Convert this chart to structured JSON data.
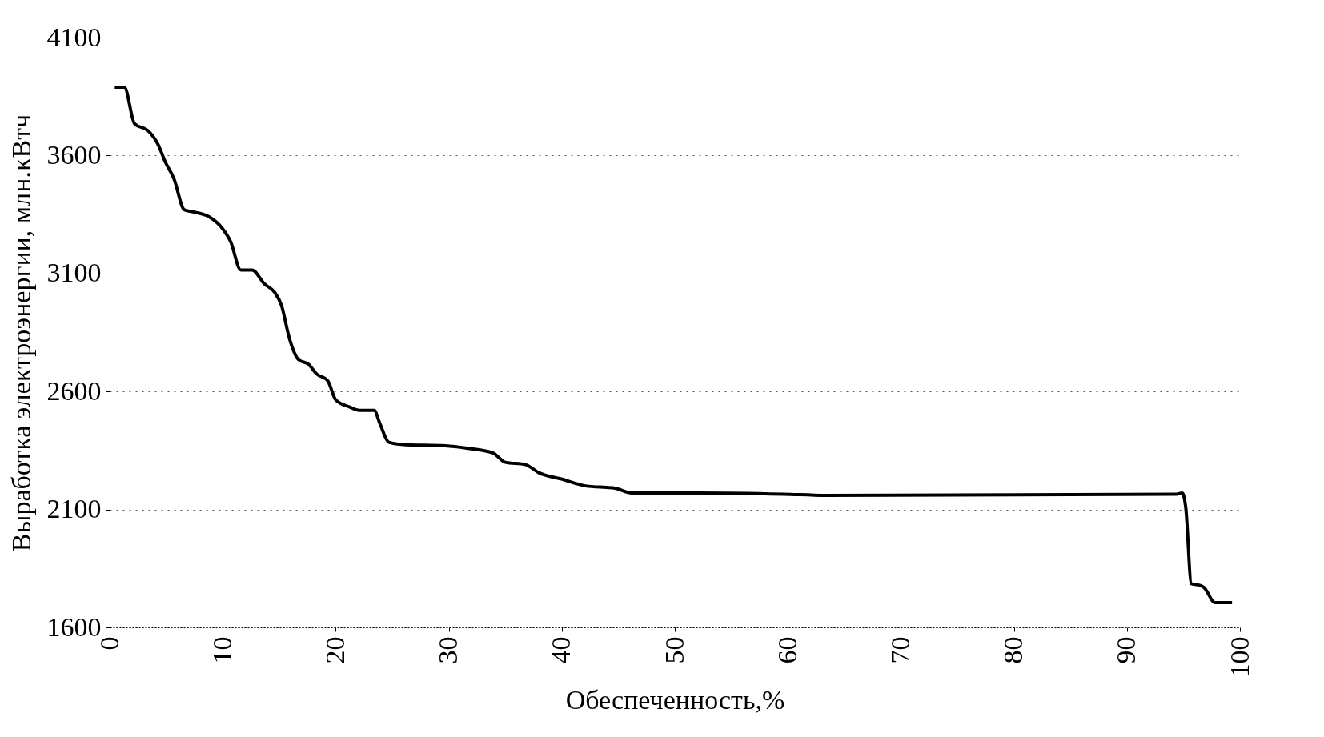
{
  "chart_data": {
    "type": "line",
    "xlabel": "Обеспеченность,%",
    "ylabel": "Выработка электроэнергии, млн.кВтч",
    "x": [
      0.45,
      1.3,
      2.2,
      3.4,
      4.3,
      4.9,
      5.7,
      6.6,
      7.5,
      8.8,
      9.9,
      10.7,
      11.6,
      12.6,
      13.7,
      14.6,
      15.2,
      15.9,
      16.7,
      17.6,
      18.3,
      19.3,
      20.0,
      21.2,
      22.1,
      23.4,
      23.9,
      24.7,
      26.0,
      29.7,
      31.6,
      33.9,
      35.0,
      36.8,
      38.0,
      39.9,
      42.1,
      44.7,
      46.2,
      52.2,
      59.6,
      63.4,
      94.4,
      94.9,
      95.2,
      95.7,
      96.3,
      96.8,
      97.8,
      99.3
    ],
    "series": [
      {
        "color": "#000000",
        "values": [
          3890,
          3890,
          3735,
          3705,
          3645,
          3575,
          3500,
          3370,
          3360,
          3340,
          3295,
          3235,
          3115,
          3115,
          3055,
          3020,
          2965,
          2825,
          2735,
          2715,
          2675,
          2645,
          2565,
          2535,
          2520,
          2520,
          2465,
          2385,
          2375,
          2370,
          2360,
          2340,
          2300,
          2290,
          2255,
          2230,
          2200,
          2190,
          2170,
          2170,
          2165,
          2160,
          2165,
          2170,
          2110,
          1785,
          1780,
          1770,
          1705,
          1705
        ]
      }
    ],
    "xlim": [
      0,
      100
    ],
    "xticks": [
      0,
      10,
      20,
      30,
      40,
      50,
      60,
      70,
      80,
      90,
      100
    ],
    "ylim": [
      1600,
      4100
    ],
    "yticks": [
      1600,
      2100,
      2600,
      3100,
      3600,
      4100
    ],
    "grid": "y",
    "marker": "none",
    "line_style": "solid"
  }
}
